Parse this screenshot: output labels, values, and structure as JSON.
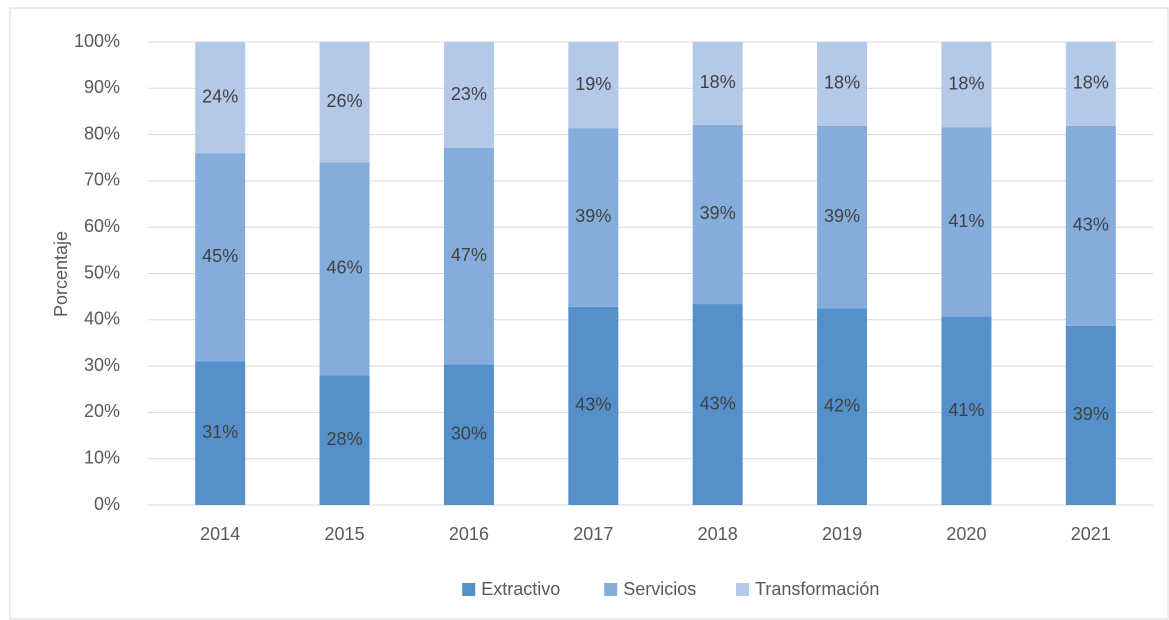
{
  "chart_data": {
    "type": "stacked_bar",
    "y_axis_label": "Porcentaje",
    "categories": [
      "2014",
      "2015",
      "2016",
      "2017",
      "2018",
      "2019",
      "2020",
      "2021"
    ],
    "series": [
      {
        "name": "Extractivo",
        "color": "#5590cb",
        "values": [
          31,
          28,
          30.4,
          42.8,
          43.4,
          42.5,
          40.6,
          38.7
        ],
        "value_labels": [
          "31%",
          "28%",
          "30%",
          "43%",
          "43%",
          "42%",
          "41%",
          "39%"
        ]
      },
      {
        "name": "Servicios",
        "color": "#84addc",
        "values": [
          45,
          46,
          46.7,
          38.6,
          38.7,
          39.4,
          41.0,
          43.2
        ],
        "value_labels": [
          "45%",
          "46%",
          "47%",
          "39%",
          "39%",
          "39%",
          "41%",
          "43%"
        ]
      },
      {
        "name": "Transformación",
        "color": "#b4c9e8",
        "values": [
          24,
          26,
          22.9,
          18.6,
          17.9,
          18.1,
          18.4,
          18.1
        ],
        "value_labels": [
          "24%",
          "26%",
          "23%",
          "19%",
          "18%",
          "18%",
          "18%",
          "18%"
        ]
      }
    ],
    "ylim": [
      0,
      100
    ],
    "yticks": [
      {
        "value": 0,
        "label": "0%"
      },
      {
        "value": 10,
        "label": "10%"
      },
      {
        "value": 20,
        "label": "20%"
      },
      {
        "value": 30,
        "label": "30%"
      },
      {
        "value": 40,
        "label": "40%"
      },
      {
        "value": 50,
        "label": "50%"
      },
      {
        "value": 60,
        "label": "60%"
      },
      {
        "value": 70,
        "label": "70%"
      },
      {
        "value": 80,
        "label": "80%"
      },
      {
        "value": 90,
        "label": "90%"
      },
      {
        "value": 100,
        "label": "100%"
      }
    ],
    "grid": true,
    "legend": "bottom"
  }
}
